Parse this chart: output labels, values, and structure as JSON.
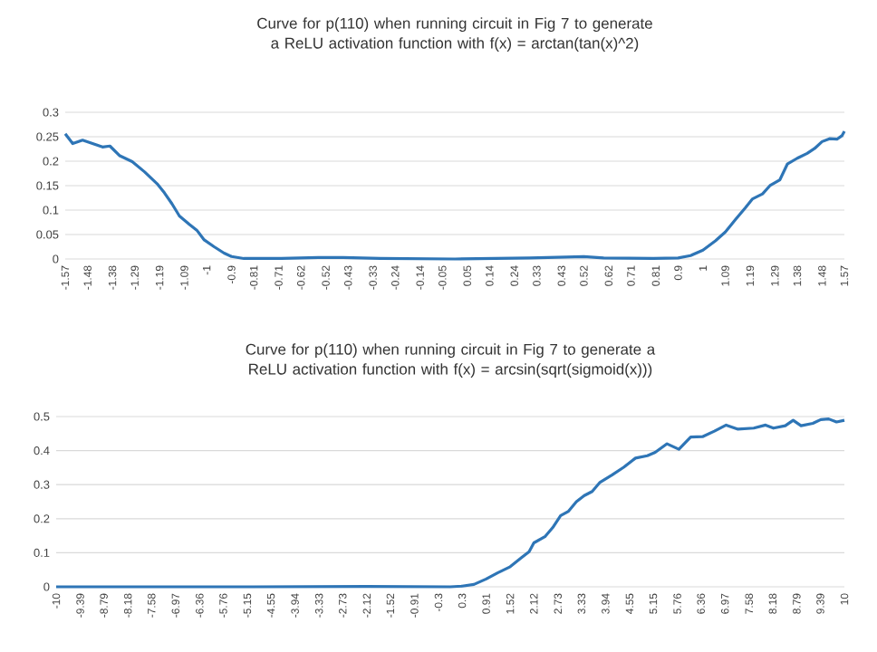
{
  "chart_data": [
    {
      "type": "line",
      "title": "Curve for p(110)  when running circuit in Fig 7 to generate a ReLU activation function with f(x) = arctan(tan(x)^2)",
      "color": "#2e75b6",
      "grid": "y",
      "xlim": [
        -1.57,
        1.57
      ],
      "ylim": [
        0,
        0.3
      ],
      "xticks": [
        -1.57,
        -1.48,
        -1.38,
        -1.29,
        -1.19,
        -1.09,
        -1,
        -0.9,
        -0.81,
        -0.71,
        -0.62,
        -0.52,
        -0.43,
        -0.33,
        -0.24,
        -0.14,
        -0.05,
        0.05,
        0.14,
        0.24,
        0.33,
        0.43,
        0.52,
        0.62,
        0.71,
        0.81,
        0.9,
        1,
        1.09,
        1.19,
        1.29,
        1.38,
        1.48,
        1.57
      ],
      "yticks": [
        0,
        0.05,
        0.1,
        0.15,
        0.2,
        0.25,
        0.3
      ],
      "x": [
        -1.57,
        -1.54,
        -1.5,
        -1.46,
        -1.42,
        -1.39,
        -1.35,
        -1.3,
        -1.25,
        -1.2,
        -1.17,
        -1.14,
        -1.11,
        -1.07,
        -1.04,
        -1.01,
        -0.97,
        -0.93,
        -0.9,
        -0.85,
        -0.7,
        -0.55,
        -0.45,
        -0.3,
        0,
        0.3,
        0.45,
        0.52,
        0.6,
        0.8,
        0.9,
        0.95,
        1.0,
        1.05,
        1.09,
        1.13,
        1.17,
        1.2,
        1.24,
        1.27,
        1.31,
        1.34,
        1.38,
        1.42,
        1.45,
        1.48,
        1.51,
        1.54,
        1.56,
        1.57
      ],
      "values": [
        0.256,
        0.236,
        0.243,
        0.236,
        0.229,
        0.231,
        0.211,
        0.199,
        0.178,
        0.154,
        0.135,
        0.113,
        0.088,
        0.071,
        0.059,
        0.039,
        0.025,
        0.012,
        0.005,
        0.001,
        0.001,
        0.003,
        0.003,
        0.001,
        0,
        0.002,
        0.004,
        0.005,
        0.002,
        0.001,
        0.002,
        0.007,
        0.018,
        0.037,
        0.055,
        0.08,
        0.104,
        0.123,
        0.133,
        0.15,
        0.162,
        0.194,
        0.206,
        0.216,
        0.226,
        0.24,
        0.246,
        0.245,
        0.252,
        0.261
      ]
    },
    {
      "type": "line",
      "title": "Curve for p(110)  when running circuit in Fig 7 to generate a ReLU activation function with f(x) = arcsin(sqrt(sigmoid(x)))",
      "color": "#2e75b6",
      "grid": "y",
      "xlim": [
        -10,
        10
      ],
      "ylim": [
        0,
        0.5
      ],
      "xticks": [
        -10,
        -9.39,
        -8.79,
        -8.18,
        -7.58,
        -6.97,
        -6.36,
        -5.76,
        -5.15,
        -4.55,
        -3.94,
        -3.33,
        -2.73,
        -2.12,
        -1.52,
        -0.91,
        -0.3,
        0.3,
        0.91,
        1.52,
        2.12,
        2.73,
        3.33,
        3.94,
        4.55,
        5.15,
        5.76,
        6.36,
        6.97,
        7.58,
        8.18,
        8.79,
        9.39,
        10
      ],
      "yticks": [
        0,
        0.1,
        0.2,
        0.3,
        0.4,
        0.5
      ],
      "x": [
        -10,
        -5,
        -2.12,
        0,
        0.3,
        0.6,
        0.91,
        1.2,
        1.52,
        1.8,
        2.0,
        2.12,
        2.4,
        2.6,
        2.8,
        3.0,
        3.2,
        3.4,
        3.6,
        3.8,
        4.1,
        4.4,
        4.7,
        5.0,
        5.2,
        5.5,
        5.8,
        6.1,
        6.4,
        6.7,
        7.0,
        7.3,
        7.7,
        8.0,
        8.2,
        8.5,
        8.7,
        8.9,
        9.2,
        9.4,
        9.6,
        9.8,
        10
      ],
      "values": [
        0,
        0,
        0.001,
        0,
        0.002,
        0.007,
        0.023,
        0.041,
        0.059,
        0.085,
        0.103,
        0.129,
        0.147,
        0.174,
        0.209,
        0.222,
        0.25,
        0.268,
        0.28,
        0.307,
        0.328,
        0.351,
        0.378,
        0.385,
        0.395,
        0.42,
        0.404,
        0.44,
        0.441,
        0.457,
        0.475,
        0.463,
        0.466,
        0.475,
        0.466,
        0.473,
        0.489,
        0.473,
        0.48,
        0.491,
        0.493,
        0.484,
        0.489
      ]
    }
  ]
}
